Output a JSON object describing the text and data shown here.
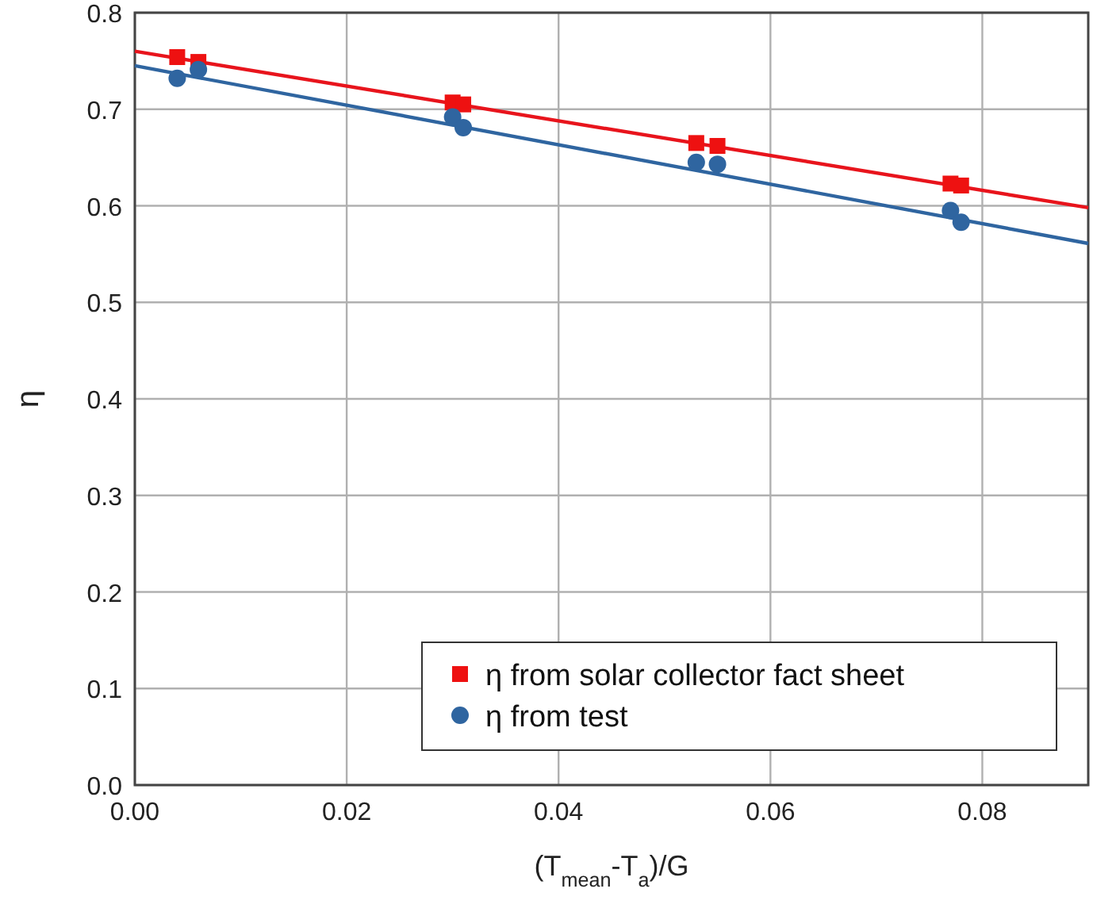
{
  "chart_data": {
    "type": "scatter",
    "xlabel": "(T$_{mean}$-T$_{a}$)/G",
    "ylabel": "η",
    "xlim": [
      0,
      0.09
    ],
    "ylim": [
      0,
      0.8
    ],
    "xticks": [
      {
        "value": 0,
        "label": "0.00"
      },
      {
        "value": 0.02,
        "label": "0.02"
      },
      {
        "value": 0.04,
        "label": "0.04"
      },
      {
        "value": 0.06,
        "label": "0.06"
      },
      {
        "value": 0.08,
        "label": "0.08"
      }
    ],
    "yticks": [
      {
        "value": 0,
        "label": "0.0"
      },
      {
        "value": 0.1,
        "label": "0.1"
      },
      {
        "value": 0.2,
        "label": "0.2"
      },
      {
        "value": 0.3,
        "label": "0.3"
      },
      {
        "value": 0.4,
        "label": "0.4"
      },
      {
        "value": 0.5,
        "label": "0.5"
      },
      {
        "value": 0.6,
        "label": "0.6"
      },
      {
        "value": 0.7,
        "label": "0.7"
      },
      {
        "value": 0.8,
        "label": "0.8"
      }
    ],
    "grid": true,
    "legend": "bottom right",
    "series": [
      {
        "type": "line",
        "color": "#e8141c",
        "x": [
          0,
          0.09
        ],
        "values": [
          0.76,
          0.598
        ]
      },
      {
        "type": "line",
        "color": "#2f65a0",
        "x": [
          0,
          0.09
        ],
        "values": [
          0.745,
          0.561
        ]
      },
      {
        "name": "η from solar collector fact sheet",
        "marker": "square",
        "color": "#ee1111",
        "x": [
          0.004,
          0.006,
          0.03,
          0.031,
          0.053,
          0.055,
          0.077,
          0.078
        ],
        "values": [
          0.754,
          0.749,
          0.707,
          0.705,
          0.665,
          0.662,
          0.623,
          0.621
        ]
      },
      {
        "name": "η from test",
        "marker": "circle",
        "color": "#2f65a0",
        "x": [
          0.004,
          0.006,
          0.03,
          0.031,
          0.053,
          0.055,
          0.077,
          0.078
        ],
        "values": [
          0.732,
          0.741,
          0.692,
          0.681,
          0.645,
          0.643,
          0.595,
          0.583
        ]
      }
    ]
  }
}
